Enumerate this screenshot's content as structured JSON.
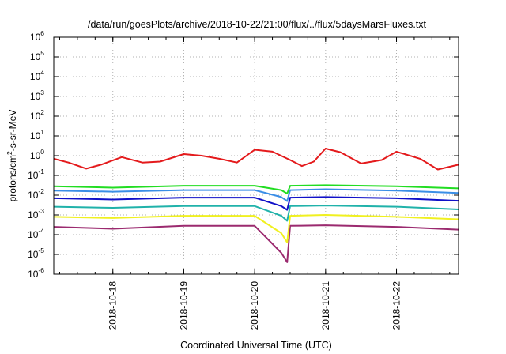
{
  "chart_data": {
    "type": "line",
    "title": "/data/run/goesPlots/archive/2018-10-22/21:00/flux/../flux/5daysMarsFluxes.txt",
    "xlabel": "Coordinated Universal Time (UTC)",
    "ylabel_main": "protons/cm",
    "ylabel_sup": "2",
    "ylabel_rest": "-s-sr-MeV",
    "x_range_days": [
      "2018-10-17T04:00",
      "2018-10-22T21:00"
    ],
    "x_ticks": [
      {
        "date": "2018-10-18",
        "label": "2018-10-18"
      },
      {
        "date": "2018-10-19",
        "label": "2018-10-19"
      },
      {
        "date": "2018-10-20",
        "label": "2018-10-20"
      },
      {
        "date": "2018-10-21",
        "label": "2018-10-21"
      },
      {
        "date": "2018-10-22",
        "label": "2018-10-22"
      }
    ],
    "y_scale": "log",
    "y_range": [
      1e-06,
      1000000.0
    ],
    "y_ticks": [
      {
        "base": "10",
        "exp": "-6",
        "value": 1e-06
      },
      {
        "base": "10",
        "exp": "-5",
        "value": 1e-05
      },
      {
        "base": "10",
        "exp": "-4",
        "value": 0.0001
      },
      {
        "base": "10",
        "exp": "-3",
        "value": 0.001
      },
      {
        "base": "10",
        "exp": "-2",
        "value": 0.01
      },
      {
        "base": "10",
        "exp": "-1",
        "value": 0.1
      },
      {
        "base": "10",
        "exp": "0",
        "value": 1
      },
      {
        "base": "10",
        "exp": "1",
        "value": 10
      },
      {
        "base": "10",
        "exp": "2",
        "value": 100
      },
      {
        "base": "10",
        "exp": "3",
        "value": 1000
      },
      {
        "base": "10",
        "exp": "4",
        "value": 10000
      },
      {
        "base": "10",
        "exp": "5",
        "value": 100000
      },
      {
        "base": "10",
        "exp": "6",
        "value": 1000000
      }
    ],
    "grid": true,
    "series": [
      {
        "color": "#e41a1c",
        "points": [
          [
            "2018-10-17T04:00",
            0.7
          ],
          [
            "2018-10-17T09:00",
            0.45
          ],
          [
            "2018-10-17T15:00",
            0.22
          ],
          [
            "2018-10-17T20:00",
            0.35
          ],
          [
            "2018-10-18T03:00",
            0.85
          ],
          [
            "2018-10-18T10:00",
            0.45
          ],
          [
            "2018-10-18T16:00",
            0.5
          ],
          [
            "2018-10-19T00:00",
            1.2
          ],
          [
            "2018-10-19T06:00",
            1.0
          ],
          [
            "2018-10-19T12:00",
            0.7
          ],
          [
            "2018-10-19T18:00",
            0.45
          ],
          [
            "2018-10-20T00:00",
            2.0
          ],
          [
            "2018-10-20T06:00",
            1.6
          ],
          [
            "2018-10-20T12:00",
            0.6
          ],
          [
            "2018-10-20T16:00",
            0.3
          ],
          [
            "2018-10-20T20:00",
            0.5
          ],
          [
            "2018-10-21T00:00",
            2.3
          ],
          [
            "2018-10-21T05:00",
            1.5
          ],
          [
            "2018-10-21T12:00",
            0.4
          ],
          [
            "2018-10-21T19:00",
            0.6
          ],
          [
            "2018-10-22T00:00",
            1.6
          ],
          [
            "2018-10-22T08:00",
            0.7
          ],
          [
            "2018-10-22T14:00",
            0.2
          ],
          [
            "2018-10-22T21:00",
            0.35
          ]
        ]
      },
      {
        "color": "#22dd22",
        "points": [
          [
            "2018-10-17T04:00",
            0.028
          ],
          [
            "2018-10-18T00:00",
            0.024
          ],
          [
            "2018-10-19T00:00",
            0.03
          ],
          [
            "2018-10-20T00:00",
            0.03
          ],
          [
            "2018-10-20T09:00",
            0.018
          ],
          [
            "2018-10-20T11:00",
            0.012
          ],
          [
            "2018-10-20T12:00",
            0.03
          ],
          [
            "2018-10-21T00:00",
            0.032
          ],
          [
            "2018-10-22T00:00",
            0.028
          ],
          [
            "2018-10-22T21:00",
            0.022
          ]
        ]
      },
      {
        "color": "#3a8ee6",
        "points": [
          [
            "2018-10-17T04:00",
            0.017
          ],
          [
            "2018-10-18T00:00",
            0.015
          ],
          [
            "2018-10-19T00:00",
            0.018
          ],
          [
            "2018-10-20T00:00",
            0.018
          ],
          [
            "2018-10-20T09:00",
            0.008
          ],
          [
            "2018-10-20T11:00",
            0.005
          ],
          [
            "2018-10-20T12:00",
            0.018
          ],
          [
            "2018-10-21T00:00",
            0.02
          ],
          [
            "2018-10-22T00:00",
            0.017
          ],
          [
            "2018-10-22T21:00",
            0.013
          ]
        ]
      },
      {
        "color": "#1010c8",
        "points": [
          [
            "2018-10-17T04:00",
            0.007
          ],
          [
            "2018-10-18T00:00",
            0.006
          ],
          [
            "2018-10-19T00:00",
            0.0075
          ],
          [
            "2018-10-20T00:00",
            0.0075
          ],
          [
            "2018-10-20T09:00",
            0.0028
          ],
          [
            "2018-10-20T11:00",
            0.0018
          ],
          [
            "2018-10-20T12:00",
            0.0075
          ],
          [
            "2018-10-21T00:00",
            0.008
          ],
          [
            "2018-10-22T00:00",
            0.007
          ],
          [
            "2018-10-22T21:00",
            0.0052
          ]
        ]
      },
      {
        "color": "#20b2aa",
        "points": [
          [
            "2018-10-17T04:00",
            0.0026
          ],
          [
            "2018-10-18T00:00",
            0.0023
          ],
          [
            "2018-10-19T00:00",
            0.0028
          ],
          [
            "2018-10-20T00:00",
            0.0028
          ],
          [
            "2018-10-20T09:00",
            0.0009
          ],
          [
            "2018-10-20T11:00",
            0.0005
          ],
          [
            "2018-10-20T12:00",
            0.0028
          ],
          [
            "2018-10-21T00:00",
            0.003
          ],
          [
            "2018-10-22T00:00",
            0.0026
          ],
          [
            "2018-10-22T21:00",
            0.0019
          ]
        ]
      },
      {
        "color": "#f0f020",
        "points": [
          [
            "2018-10-17T04:00",
            0.0008
          ],
          [
            "2018-10-18T00:00",
            0.0007
          ],
          [
            "2018-10-19T00:00",
            0.0009
          ],
          [
            "2018-10-20T00:00",
            0.0009
          ],
          [
            "2018-10-20T09:00",
            0.00012
          ],
          [
            "2018-10-20T11:00",
            4e-05
          ],
          [
            "2018-10-20T12:00",
            0.0009
          ],
          [
            "2018-10-21T00:00",
            0.001
          ],
          [
            "2018-10-22T00:00",
            0.0008
          ],
          [
            "2018-10-22T21:00",
            0.0006
          ]
        ]
      },
      {
        "color": "#9b2a6f",
        "points": [
          [
            "2018-10-17T04:00",
            0.00025
          ],
          [
            "2018-10-18T00:00",
            0.0002
          ],
          [
            "2018-10-19T00:00",
            0.00028
          ],
          [
            "2018-10-20T00:00",
            0.00028
          ],
          [
            "2018-10-20T09:00",
            1.2e-05
          ],
          [
            "2018-10-20T11:00",
            4e-06
          ],
          [
            "2018-10-20T12:00",
            0.00028
          ],
          [
            "2018-10-21T00:00",
            0.0003
          ],
          [
            "2018-10-22T00:00",
            0.00025
          ],
          [
            "2018-10-22T21:00",
            0.00018
          ]
        ]
      }
    ]
  }
}
